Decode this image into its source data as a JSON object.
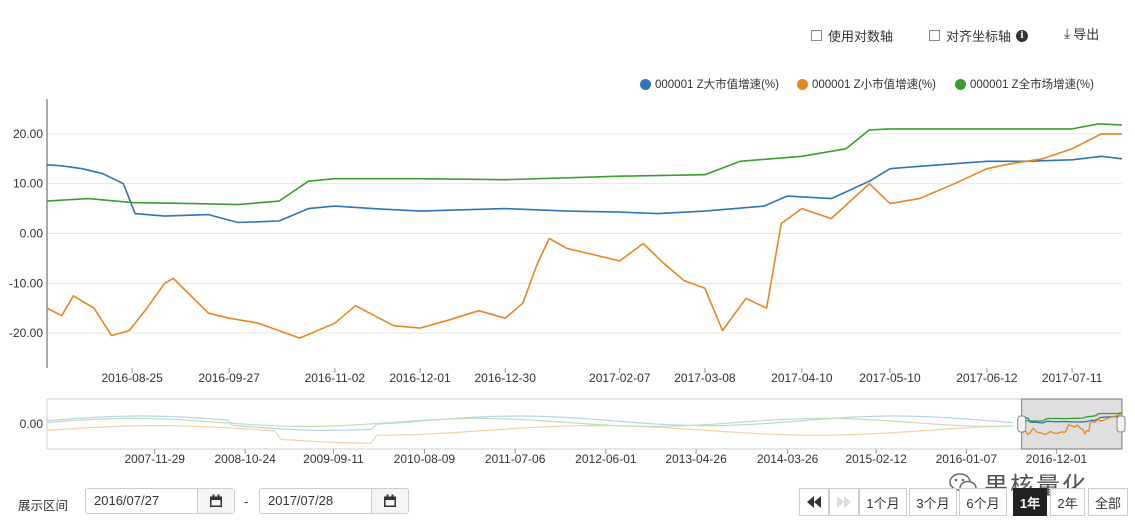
{
  "toolbar": {
    "log_axis_label": "使用对数轴",
    "align_axis_label": "对齐坐标轴",
    "export_label": "导出"
  },
  "colors": {
    "large": "#2f75b5",
    "small": "#e8861f",
    "market": "#3a9e2f"
  },
  "chart_data": {
    "type": "line",
    "main": {
      "ylim": [
        -27,
        27
      ],
      "yticks": [
        "20.00",
        "10.00",
        "0.00",
        "-10.00",
        "-20.00"
      ],
      "yticks_values": [
        20,
        10,
        0,
        -10,
        -20
      ],
      "xticks": [
        "2016-08-25",
        "2016-09-27",
        "2016-11-02",
        "2016-12-01",
        "2016-12-30",
        "2017-02-07",
        "2017-03-08",
        "2017-04-10",
        "2017-05-10",
        "2017-06-12",
        "2017-07-11"
      ],
      "x_range": [
        "2016-07-27",
        "2017-07-28"
      ],
      "series": [
        {
          "name": "000001 Z大市值增速(%)",
          "color": "#2f75b5",
          "points": [
            [
              "2016-07-27",
              13.8
            ],
            [
              "2016-08-01",
              13.6
            ],
            [
              "2016-08-08",
              13.0
            ],
            [
              "2016-08-15",
              12.0
            ],
            [
              "2016-08-22",
              10.0
            ],
            [
              "2016-08-26",
              4.0
            ],
            [
              "2016-09-05",
              3.5
            ],
            [
              "2016-09-20",
              3.8
            ],
            [
              "2016-09-30",
              2.2
            ],
            [
              "2016-10-14",
              2.5
            ],
            [
              "2016-10-24",
              5.0
            ],
            [
              "2016-11-02",
              5.5
            ],
            [
              "2016-11-15",
              5.0
            ],
            [
              "2016-12-01",
              4.5
            ],
            [
              "2016-12-30",
              5.0
            ],
            [
              "2017-01-20",
              4.5
            ],
            [
              "2017-02-07",
              4.3
            ],
            [
              "2017-02-20",
              4.0
            ],
            [
              "2017-03-08",
              4.5
            ],
            [
              "2017-03-28",
              5.5
            ],
            [
              "2017-04-05",
              7.5
            ],
            [
              "2017-04-20",
              7.0
            ],
            [
              "2017-05-03",
              10.5
            ],
            [
              "2017-05-10",
              13.0
            ],
            [
              "2017-05-20",
              13.5
            ],
            [
              "2017-06-12",
              14.5
            ],
            [
              "2017-06-25",
              14.5
            ],
            [
              "2017-07-11",
              14.8
            ],
            [
              "2017-07-21",
              15.5
            ],
            [
              "2017-07-28",
              15.0
            ]
          ]
        },
        {
          "name": "000001 Z小市值增速(%)",
          "color": "#e8861f",
          "points": [
            [
              "2016-07-27",
              -15.0
            ],
            [
              "2016-08-01",
              -16.5
            ],
            [
              "2016-08-05",
              -12.5
            ],
            [
              "2016-08-12",
              -15.0
            ],
            [
              "2016-08-18",
              -20.5
            ],
            [
              "2016-08-24",
              -19.5
            ],
            [
              "2016-08-30",
              -15.0
            ],
            [
              "2016-09-05",
              -10.0
            ],
            [
              "2016-09-08",
              -9.0
            ],
            [
              "2016-09-14",
              -12.5
            ],
            [
              "2016-09-20",
              -16.0
            ],
            [
              "2016-09-27",
              -17.0
            ],
            [
              "2016-10-07",
              -18.0
            ],
            [
              "2016-10-21",
              -21.0
            ],
            [
              "2016-11-02",
              -18.0
            ],
            [
              "2016-11-09",
              -14.5
            ],
            [
              "2016-11-22",
              -18.5
            ],
            [
              "2016-12-01",
              -19.0
            ],
            [
              "2016-12-10",
              -17.5
            ],
            [
              "2016-12-21",
              -15.5
            ],
            [
              "2016-12-30",
              -17.0
            ],
            [
              "2017-01-05",
              -14.0
            ],
            [
              "2017-01-10",
              -6.0
            ],
            [
              "2017-01-14",
              -1.0
            ],
            [
              "2017-01-20",
              -3.0
            ],
            [
              "2017-02-07",
              -5.5
            ],
            [
              "2017-02-15",
              -2.0
            ],
            [
              "2017-02-22",
              -6.0
            ],
            [
              "2017-03-01",
              -9.5
            ],
            [
              "2017-03-08",
              -11.0
            ],
            [
              "2017-03-14",
              -19.5
            ],
            [
              "2017-03-22",
              -13.0
            ],
            [
              "2017-03-29",
              -15.0
            ],
            [
              "2017-04-03",
              2.0
            ],
            [
              "2017-04-10",
              5.0
            ],
            [
              "2017-04-20",
              3.0
            ],
            [
              "2017-05-03",
              10.0
            ],
            [
              "2017-05-10",
              6.0
            ],
            [
              "2017-05-20",
              7.0
            ],
            [
              "2017-06-01",
              10.0
            ],
            [
              "2017-06-12",
              13.0
            ],
            [
              "2017-06-20",
              14.0
            ],
            [
              "2017-07-01",
              15.0
            ],
            [
              "2017-07-11",
              17.0
            ],
            [
              "2017-07-21",
              20.0
            ],
            [
              "2017-07-28",
              20.0
            ]
          ]
        },
        {
          "name": "000001 Z全市场增速(%)",
          "color": "#3a9e2f",
          "points": [
            [
              "2016-07-27",
              6.5
            ],
            [
              "2016-08-10",
              7.0
            ],
            [
              "2016-08-25",
              6.2
            ],
            [
              "2016-09-15",
              6.0
            ],
            [
              "2016-09-30",
              5.8
            ],
            [
              "2016-10-14",
              6.5
            ],
            [
              "2016-10-24",
              10.5
            ],
            [
              "2016-11-02",
              11.0
            ],
            [
              "2016-12-01",
              11.0
            ],
            [
              "2016-12-30",
              10.8
            ],
            [
              "2017-02-07",
              11.5
            ],
            [
              "2017-03-08",
              11.8
            ],
            [
              "2017-03-20",
              14.5
            ],
            [
              "2017-04-10",
              15.5
            ],
            [
              "2017-04-25",
              17.0
            ],
            [
              "2017-05-03",
              20.8
            ],
            [
              "2017-05-10",
              21.0
            ],
            [
              "2017-06-12",
              21.0
            ],
            [
              "2017-07-11",
              21.0
            ],
            [
              "2017-07-20",
              22.0
            ],
            [
              "2017-07-28",
              21.8
            ]
          ]
        }
      ]
    },
    "navigator": {
      "ytick": "0.00",
      "xticks": [
        "2007-11-29",
        "2008-10-24",
        "2009-09-11",
        "2010-08-09",
        "2011-07-06",
        "2012-06-01",
        "2013-04-26",
        "2014-03-26",
        "2015-02-12",
        "2016-01-07",
        "2016-12-01"
      ],
      "selected_range": [
        "2016-07-27",
        "2017-07-28"
      ]
    },
    "legend_position": "top-right",
    "grid": "horizontal"
  },
  "range_selector": {
    "label": "展示区间",
    "from": "2016/07/27",
    "to": "2017/07/28",
    "separator": "-",
    "buttons": [
      "1个月",
      "3个月",
      "6个月",
      "1年",
      "2年",
      "全部"
    ],
    "active": "1年"
  },
  "watermark": "果核量化"
}
